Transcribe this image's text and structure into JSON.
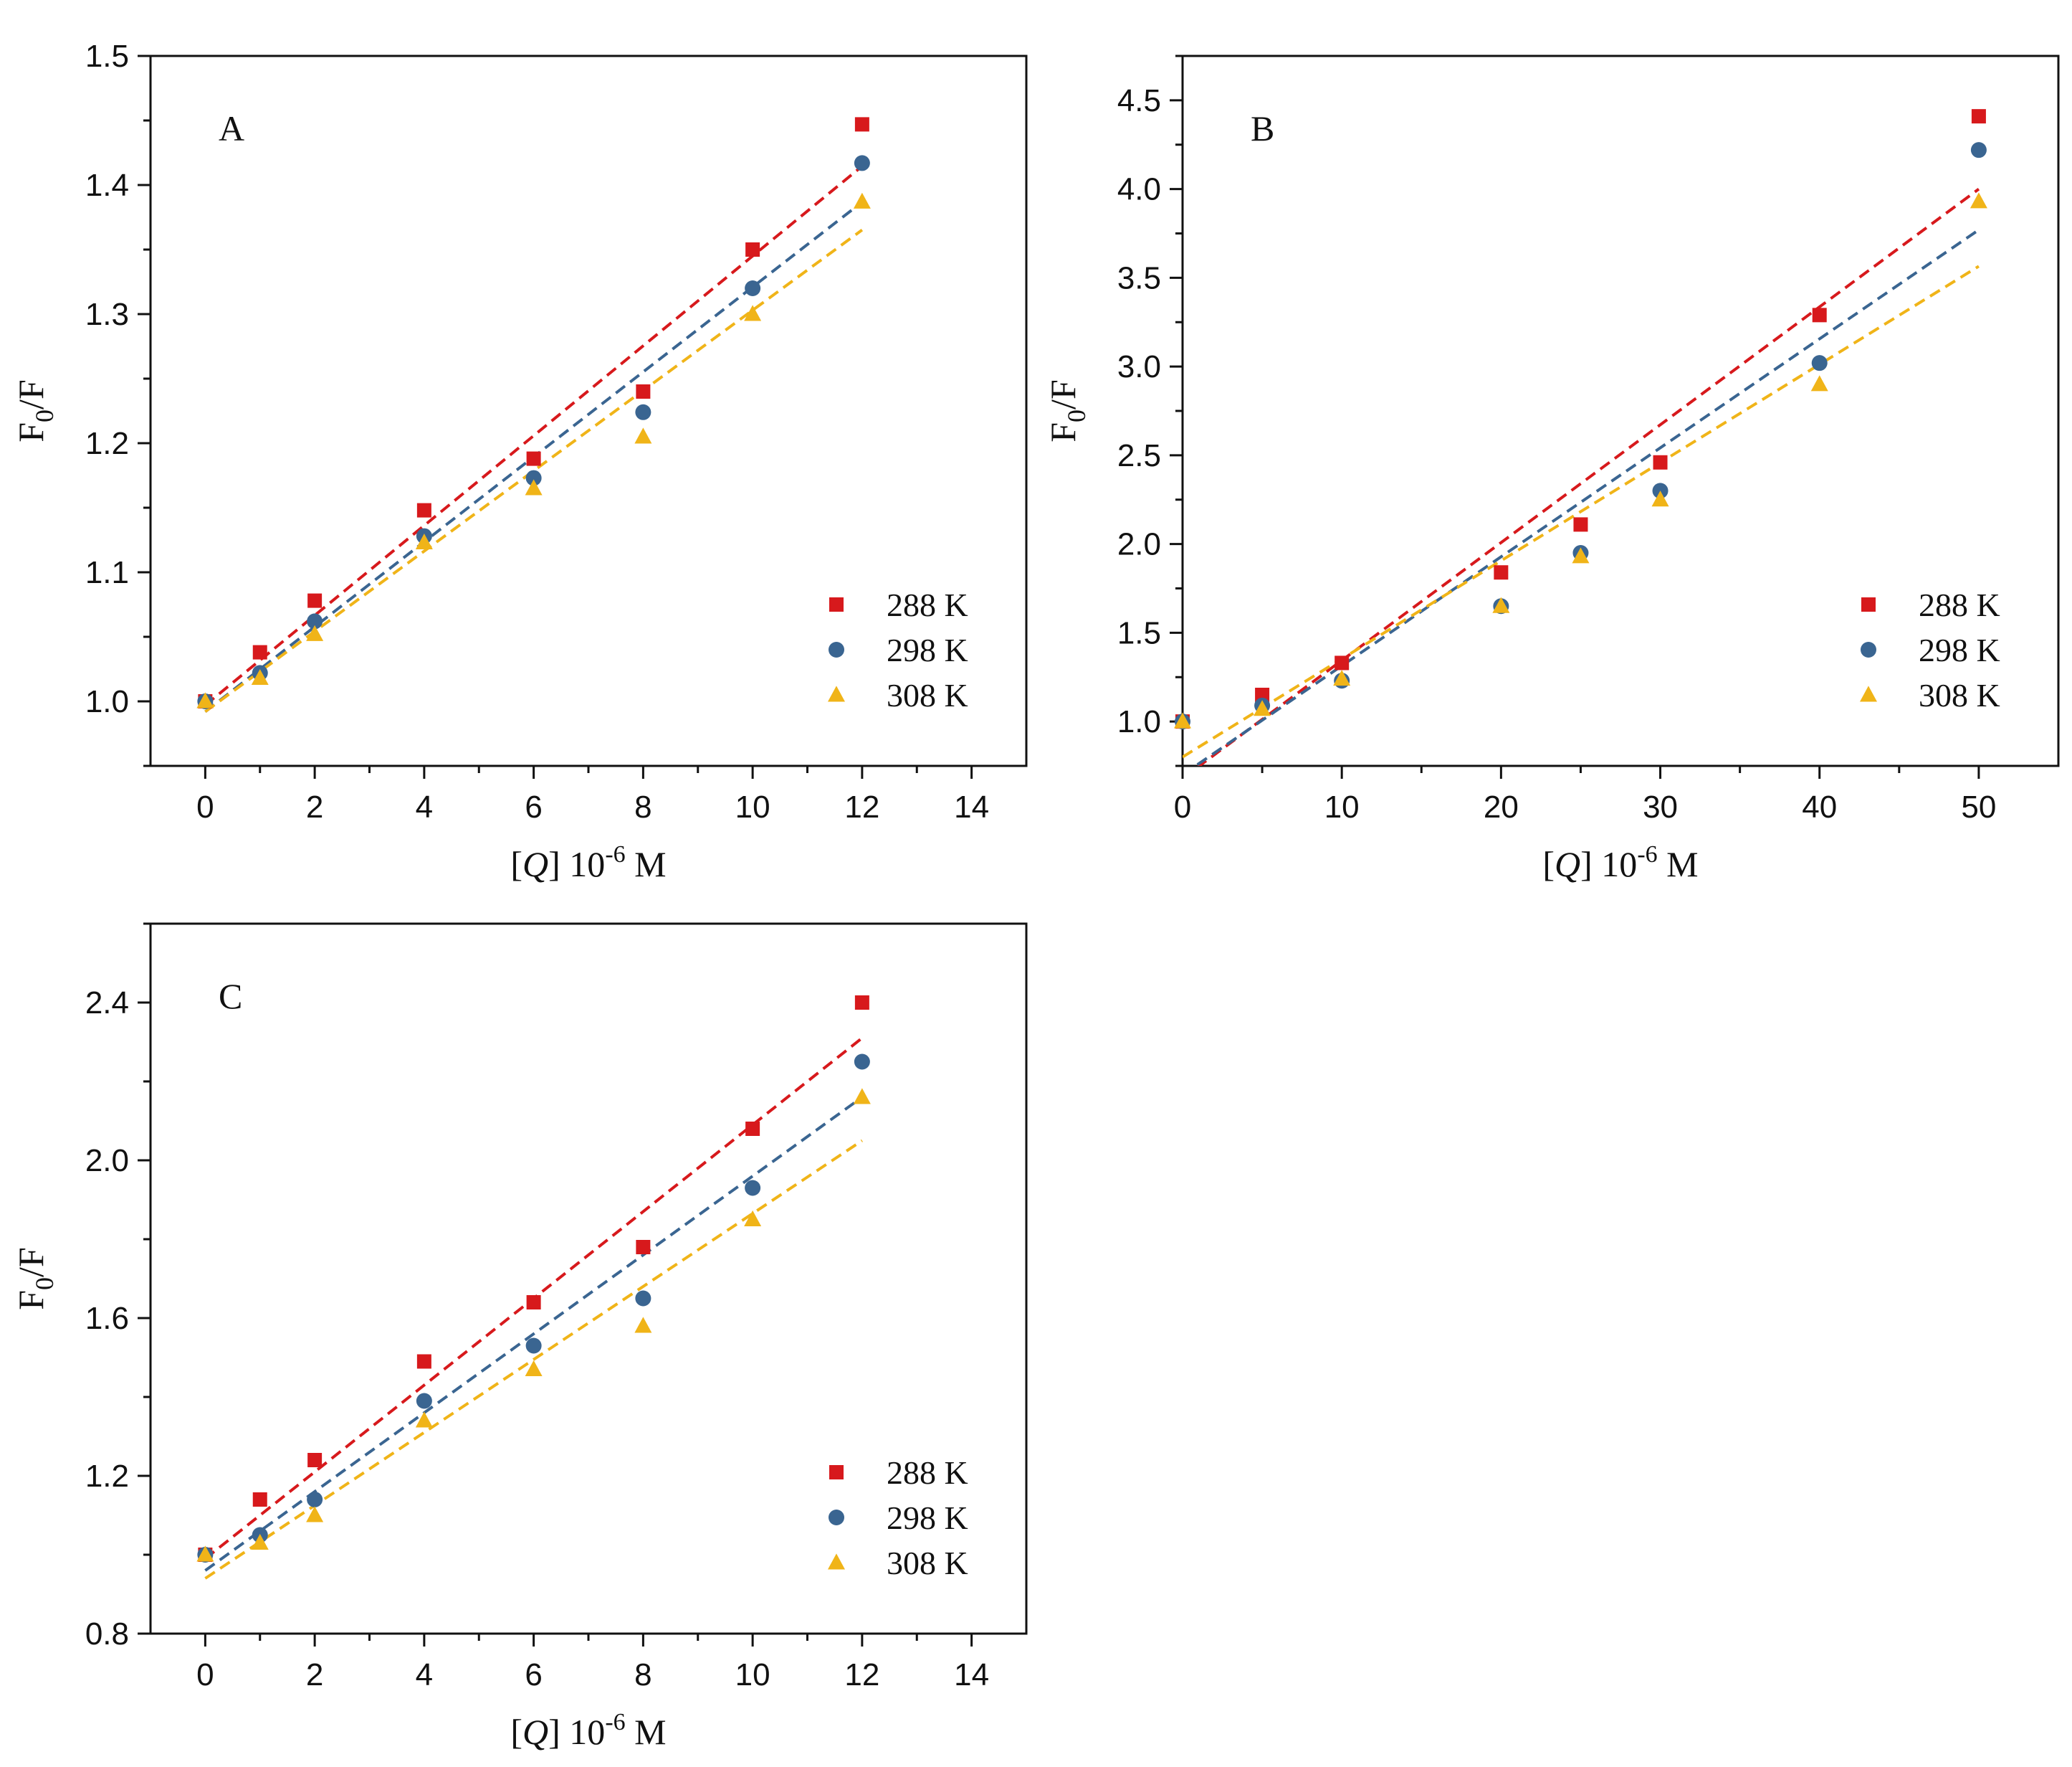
{
  "chart_data": [
    {
      "panel": "A",
      "type": "scatter",
      "xlabel_prefix": "[",
      "xlabel_var": "Q",
      "xlabel_mid": "] 10",
      "xlabel_exp": "-6",
      "xlabel_unit": " M",
      "ylabel_main": "F",
      "ylabel_sub": "0",
      "ylabel_tail": "/F",
      "xlim": [
        -1,
        15
      ],
      "ylim": [
        0.95,
        1.5
      ],
      "xticks": [
        0,
        2,
        4,
        6,
        8,
        10,
        12,
        14
      ],
      "yticks": [
        1.0,
        1.1,
        1.2,
        1.3,
        1.4,
        1.5
      ],
      "ytick_decimals": 1,
      "series": [
        {
          "name": "288 K",
          "color": "#d7191c",
          "marker": "square",
          "x": [
            0,
            1,
            2,
            4,
            6,
            8,
            10,
            12
          ],
          "y": [
            1.0,
            1.038,
            1.078,
            1.148,
            1.188,
            1.24,
            1.35,
            1.447
          ],
          "fit_intercept": 0.997,
          "fit_slope": 0.0348
        },
        {
          "name": "298 K",
          "color": "#3a6591",
          "marker": "circle",
          "x": [
            0,
            1,
            2,
            4,
            6,
            8,
            10,
            12
          ],
          "y": [
            1.0,
            1.022,
            1.062,
            1.128,
            1.173,
            1.224,
            1.32,
            1.417
          ],
          "fit_intercept": 0.992,
          "fit_slope": 0.0329
        },
        {
          "name": "308 K",
          "color": "#f0b418",
          "marker": "triangle",
          "x": [
            0,
            1,
            2,
            4,
            6,
            8,
            10,
            12
          ],
          "y": [
            1.0,
            1.018,
            1.052,
            1.123,
            1.165,
            1.205,
            1.3,
            1.387
          ],
          "fit_intercept": 0.992,
          "fit_slope": 0.0311
        }
      ]
    },
    {
      "panel": "B",
      "type": "scatter",
      "xlabel_prefix": "[",
      "xlabel_var": "Q",
      "xlabel_mid": "] 10",
      "xlabel_exp": "-6",
      "xlabel_unit": " M",
      "ylabel_main": "F",
      "ylabel_sub": "0",
      "ylabel_tail": "/F",
      "xlim": [
        0,
        55
      ],
      "ylim": [
        0.75,
        4.75
      ],
      "xticks": [
        0,
        10,
        20,
        30,
        40,
        50
      ],
      "yticks": [
        1.0,
        1.5,
        2.0,
        2.5,
        3.0,
        3.5,
        4.0,
        4.5
      ],
      "ytick_decimals": 1,
      "series": [
        {
          "name": "288 K",
          "color": "#d7191c",
          "marker": "square",
          "x": [
            0,
            5,
            10,
            20,
            25,
            30,
            40,
            50
          ],
          "y": [
            1.0,
            1.15,
            1.33,
            1.84,
            2.11,
            2.46,
            3.29,
            4.41
          ],
          "fit_intercept": 0.68,
          "fit_slope": 0.0664
        },
        {
          "name": "298 K",
          "color": "#3a6591",
          "marker": "circle",
          "x": [
            0,
            5,
            10,
            20,
            25,
            30,
            40,
            50
          ],
          "y": [
            1.0,
            1.09,
            1.23,
            1.65,
            1.95,
            2.3,
            3.02,
            4.22
          ],
          "fit_intercept": 0.7,
          "fit_slope": 0.0614
        },
        {
          "name": "308 K",
          "color": "#f0b418",
          "marker": "triangle",
          "x": [
            0,
            5,
            10,
            20,
            25,
            30,
            40,
            50
          ],
          "y": [
            1.0,
            1.07,
            1.24,
            1.65,
            1.93,
            2.25,
            2.9,
            3.93
          ],
          "fit_intercept": 0.8,
          "fit_slope": 0.0553
        }
      ]
    },
    {
      "panel": "C",
      "type": "scatter",
      "xlabel_prefix": "[",
      "xlabel_var": "Q",
      "xlabel_mid": "] 10",
      "xlabel_exp": "-6",
      "xlabel_unit": " M",
      "ylabel_main": "F",
      "ylabel_sub": "0",
      "ylabel_tail": "/F",
      "xlim": [
        -1,
        15
      ],
      "ylim": [
        0.8,
        2.6
      ],
      "xticks": [
        0,
        2,
        4,
        6,
        8,
        10,
        12,
        14
      ],
      "yticks": [
        0.8,
        1.2,
        1.6,
        2.0,
        2.4
      ],
      "ytick_decimals": 1,
      "series": [
        {
          "name": "288 K",
          "color": "#d7191c",
          "marker": "square",
          "x": [
            0,
            1,
            2,
            4,
            6,
            8,
            10,
            12
          ],
          "y": [
            1.0,
            1.14,
            1.24,
            1.49,
            1.64,
            1.78,
            2.08,
            2.4
          ],
          "fit_intercept": 0.99,
          "fit_slope": 0.11
        },
        {
          "name": "298 K",
          "color": "#3a6591",
          "marker": "circle",
          "x": [
            0,
            1,
            2,
            4,
            6,
            8,
            10,
            12
          ],
          "y": [
            1.0,
            1.05,
            1.14,
            1.39,
            1.53,
            1.65,
            1.93,
            2.25
          ],
          "fit_intercept": 0.96,
          "fit_slope": 0.1
        },
        {
          "name": "308 K",
          "color": "#f0b418",
          "marker": "triangle",
          "x": [
            0,
            1,
            2,
            4,
            6,
            8,
            10,
            12
          ],
          "y": [
            1.0,
            1.03,
            1.1,
            1.34,
            1.47,
            1.58,
            1.85,
            2.16
          ],
          "fit_intercept": 0.94,
          "fit_slope": 0.0925
        }
      ]
    }
  ]
}
